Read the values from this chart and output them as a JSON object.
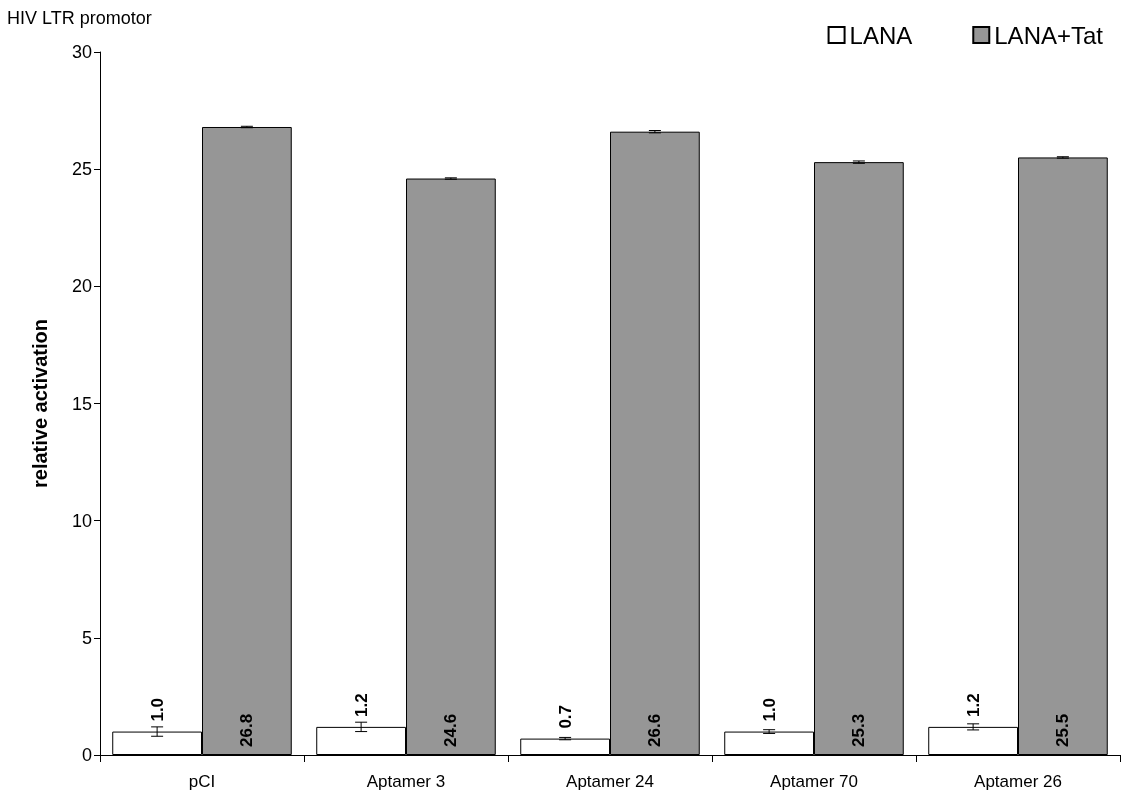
{
  "chart_data": {
    "type": "bar",
    "title": "HIV LTR promotor",
    "ylabel": "relative activation",
    "categories": [
      "pCI",
      "Aptamer 3",
      "Aptamer 24",
      "Aptamer 70",
      "Aptamer 26"
    ],
    "series": [
      {
        "name": "LANA",
        "color": "#ffffff",
        "values": [
          1.0,
          1.2,
          0.7,
          1.0,
          1.2
        ],
        "errors": [
          0.2,
          0.2,
          0.05,
          0.08,
          0.13
        ],
        "value_labels": [
          "1.0",
          "1.2",
          "0.7",
          "1.0",
          "1.2"
        ]
      },
      {
        "name": "LANA+Tat",
        "color": "#969696",
        "values": [
          26.8,
          24.6,
          26.6,
          25.3,
          25.5
        ],
        "errors": [
          0.03,
          0.03,
          0.05,
          0.05,
          0.03
        ],
        "value_labels": [
          "26.8",
          "24.6",
          "26.6",
          "25.3",
          "25.5"
        ]
      }
    ],
    "ylim": [
      0,
      30
    ],
    "yticks": [
      0,
      5,
      10,
      15,
      20,
      25,
      30
    ],
    "grid": false,
    "legend": "top right"
  }
}
